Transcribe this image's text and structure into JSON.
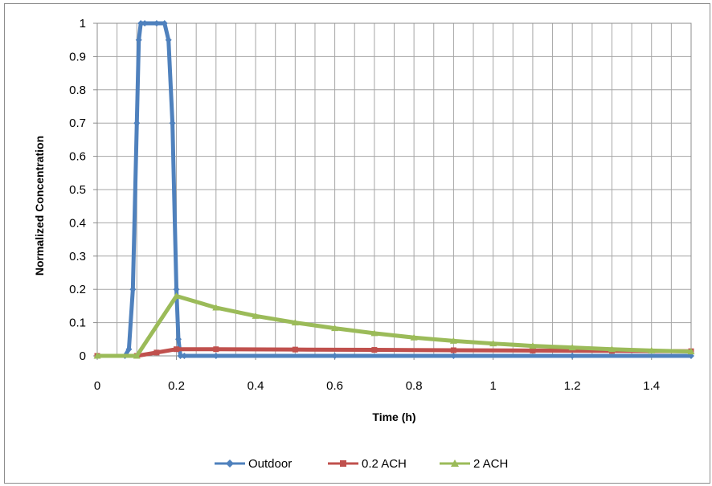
{
  "chart_data": {
    "type": "line",
    "xlabel": "Time (h)",
    "ylabel": "Normalized Concentration",
    "xlim": [
      0,
      1.5
    ],
    "ylim": [
      0,
      1
    ],
    "x_ticks": [
      0,
      0.2,
      0.4,
      0.6,
      0.8,
      1,
      1.2,
      1.4
    ],
    "x_tick_labels": [
      "0",
      "0.2",
      "0.4",
      "0.6",
      "0.8",
      "1",
      "1.2",
      "1.4"
    ],
    "y_ticks": [
      0,
      0.1,
      0.2,
      0.3,
      0.4,
      0.5,
      0.6,
      0.7,
      0.8,
      0.9,
      1
    ],
    "y_tick_labels": [
      "0",
      "0.1",
      "0.2",
      "0.3",
      "0.4",
      "0.5",
      "0.6",
      "0.7",
      "0.8",
      "0.9",
      "1"
    ],
    "grid": true,
    "legend_position": "bottom",
    "series": [
      {
        "name": "Outdoor",
        "color": "#4F81BD",
        "marker": "diamond",
        "x": [
          0,
          0.07,
          0.08,
          0.09,
          0.1,
          0.105,
          0.11,
          0.12,
          0.15,
          0.17,
          0.18,
          0.19,
          0.2,
          0.205,
          0.21,
          0.22,
          0.3,
          0.6,
          0.9,
          1.2,
          1.5
        ],
        "y": [
          0,
          0,
          0.02,
          0.2,
          0.7,
          0.95,
          1,
          1,
          1,
          1,
          0.95,
          0.7,
          0.2,
          0.05,
          0,
          0,
          0,
          0,
          0,
          0,
          0
        ]
      },
      {
        "name": "0.2 ACH",
        "color": "#C0504D",
        "marker": "square",
        "x": [
          0,
          0.1,
          0.15,
          0.2,
          0.3,
          0.5,
          0.7,
          0.9,
          1.1,
          1.3,
          1.5
        ],
        "y": [
          0,
          0,
          0.01,
          0.02,
          0.02,
          0.019,
          0.018,
          0.017,
          0.016,
          0.015,
          0.014
        ]
      },
      {
        "name": "2 ACH",
        "color": "#9BBB59",
        "marker": "triangle",
        "x": [
          0,
          0.1,
          0.2,
          0.3,
          0.4,
          0.5,
          0.6,
          0.7,
          0.8,
          0.9,
          1.0,
          1.1,
          1.2,
          1.3,
          1.4,
          1.5
        ],
        "y": [
          0,
          0,
          0.18,
          0.145,
          0.12,
          0.1,
          0.083,
          0.068,
          0.055,
          0.045,
          0.037,
          0.03,
          0.025,
          0.02,
          0.016,
          0.013
        ]
      }
    ]
  }
}
